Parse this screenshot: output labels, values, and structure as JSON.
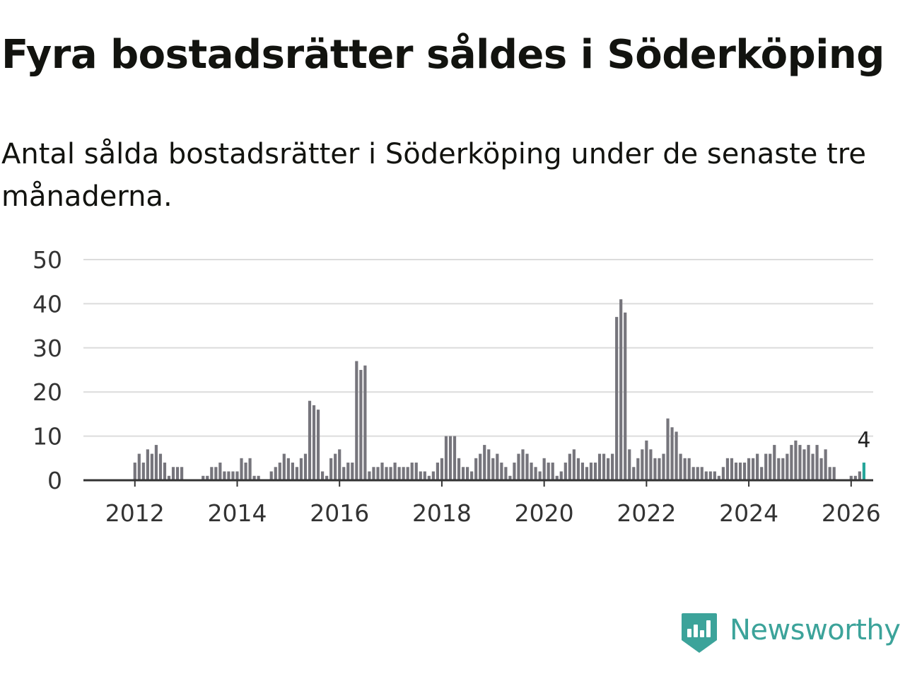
{
  "title": "Fyra bostadsrätter såldes i Söderköping",
  "subtitle": "Antal sålda bostadsrätter i Söderköping under de senaste tre månaderna.",
  "brand": {
    "name": "Newsworthy",
    "color": "#3ca39a"
  },
  "colors": {
    "bar": "#76757c",
    "highlight": "#26a69a",
    "grid": "#dcdcdc",
    "axis": "#333333"
  },
  "chart_data": {
    "type": "bar",
    "title": "Fyra bostadsrätter såldes i Söderköping",
    "xlabel": "",
    "ylabel": "",
    "ylim": [
      0,
      50
    ],
    "yticks": [
      0,
      10,
      20,
      30,
      40,
      50
    ],
    "x_tick_labels": [
      "2012",
      "2014",
      "2016",
      "2018",
      "2020",
      "2022",
      "2024",
      "2026"
    ],
    "start": "2011-04",
    "frequency": "monthly",
    "grid": true,
    "series": [
      {
        "name": "Antal sålda bostadsrätter",
        "values": [
          0,
          0,
          0,
          0,
          0,
          0,
          0,
          0,
          0,
          4,
          6,
          4,
          7,
          6,
          8,
          6,
          4,
          1,
          3,
          3,
          3,
          0,
          0,
          0,
          0,
          1,
          1,
          3,
          3,
          4,
          2,
          2,
          2,
          2,
          5,
          4,
          5,
          1,
          1,
          0,
          0,
          2,
          3,
          4,
          6,
          5,
          4,
          3,
          5,
          6,
          18,
          17,
          16,
          2,
          1,
          5,
          6,
          7,
          3,
          4,
          4,
          27,
          25,
          26,
          2,
          3,
          3,
          4,
          3,
          3,
          4,
          3,
          3,
          3,
          4,
          4,
          2,
          2,
          1,
          2,
          4,
          5,
          10,
          10,
          10,
          5,
          3,
          3,
          2,
          5,
          6,
          8,
          7,
          5,
          6,
          4,
          3,
          1,
          4,
          6,
          7,
          6,
          4,
          3,
          2,
          5,
          4,
          4,
          1,
          2,
          4,
          6,
          7,
          5,
          4,
          3,
          4,
          4,
          6,
          6,
          5,
          6,
          37,
          41,
          38,
          7,
          3,
          5,
          7,
          9,
          7,
          5,
          5,
          6,
          14,
          12,
          11,
          6,
          5,
          5,
          3,
          3,
          3,
          2,
          2,
          2,
          1,
          3,
          5,
          5,
          4,
          4,
          4,
          5,
          5,
          6,
          3,
          6,
          6,
          8,
          5,
          5,
          6,
          8,
          9,
          8,
          7,
          8,
          6,
          8,
          5,
          7,
          3,
          3,
          0,
          0,
          0,
          1,
          1,
          2,
          4
        ]
      }
    ],
    "highlight_last": {
      "value": 4,
      "label": "4"
    }
  }
}
